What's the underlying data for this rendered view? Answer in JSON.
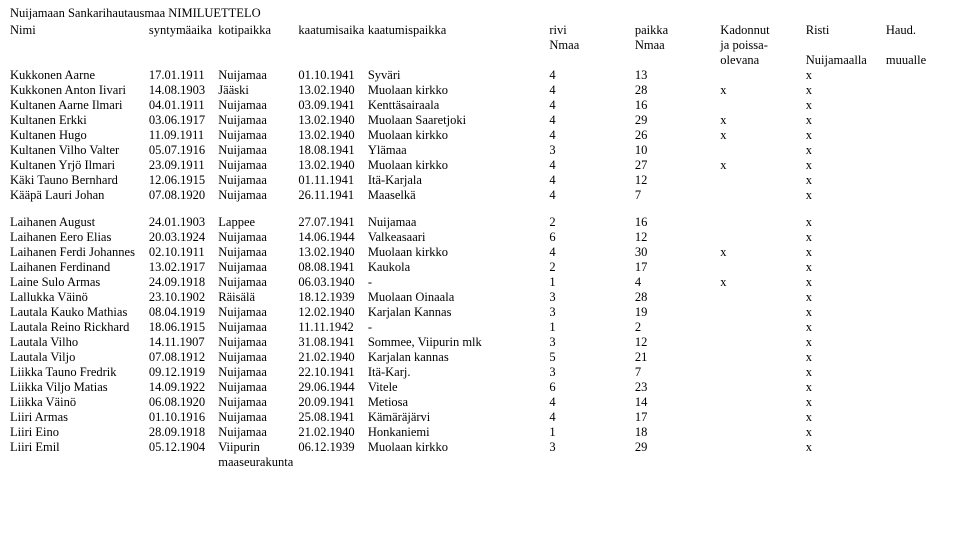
{
  "title": "Nuijamaan Sankarihautausmaa NIMILUETTELO",
  "headers": {
    "name": "Nimi",
    "birth": "syntymäaika",
    "home": "kotipaikka",
    "fdate": "kaatumisaika",
    "fplace": "kaatumispaikka",
    "row": [
      "rivi",
      "Nmaa"
    ],
    "place": [
      "paikka",
      "Nmaa"
    ],
    "mia": [
      "Kadonnut",
      "ja poissa-",
      "olevana"
    ],
    "cross": [
      "Risti",
      "",
      "Nuijamaalla"
    ],
    "bur": [
      "Haud.",
      "",
      "muualle"
    ]
  },
  "groups": [
    [
      {
        "name": "Kukkonen Aarne",
        "birth": "17.01.1911",
        "home": "Nuijamaa",
        "fdate": "01.10.1941",
        "fplace": "Syväri",
        "row": "4",
        "place": "13",
        "mia": "",
        "cross": "x",
        "bur": ""
      },
      {
        "name": "Kukkonen Anton Iivari",
        "birth": "14.08.1903",
        "home": "Jääski",
        "fdate": "13.02.1940",
        "fplace": "Muolaan kirkko",
        "row": "4",
        "place": "28",
        "mia": "x",
        "cross": "x",
        "bur": ""
      },
      {
        "name": "Kultanen Aarne Ilmari",
        "birth": "04.01.1911",
        "home": "Nuijamaa",
        "fdate": "03.09.1941",
        "fplace": "Kenttäsairaala",
        "row": "4",
        "place": "16",
        "mia": "",
        "cross": "x",
        "bur": ""
      },
      {
        "name": "Kultanen Erkki",
        "birth": "03.06.1917",
        "home": "Nuijamaa",
        "fdate": "13.02.1940",
        "fplace": "Muolaan Saaretjoki",
        "row": "4",
        "place": "29",
        "mia": "x",
        "cross": "x",
        "bur": ""
      },
      {
        "name": "Kultanen Hugo",
        "birth": "11.09.1911",
        "home": "Nuijamaa",
        "fdate": "13.02.1940",
        "fplace": "Muolaan kirkko",
        "row": "4",
        "place": "26",
        "mia": "x",
        "cross": "x",
        "bur": ""
      },
      {
        "name": "Kultanen Vilho Valter",
        "birth": "05.07.1916",
        "home": "Nuijamaa",
        "fdate": "18.08.1941",
        "fplace": "Ylämaa",
        "row": "3",
        "place": "10",
        "mia": "",
        "cross": "x",
        "bur": ""
      },
      {
        "name": "Kultanen Yrjö Ilmari",
        "birth": "23.09.1911",
        "home": "Nuijamaa",
        "fdate": "13.02.1940",
        "fplace": "Muolaan kirkko",
        "row": "4",
        "place": "27",
        "mia": "x",
        "cross": "x",
        "bur": ""
      },
      {
        "name": "Käki Tauno Bernhard",
        "birth": "12.06.1915",
        "home": "Nuijamaa",
        "fdate": "01.11.1941",
        "fplace": "Itä-Karjala",
        "row": "4",
        "place": "12",
        "mia": "",
        "cross": "x",
        "bur": ""
      },
      {
        "name": "Kääpä Lauri Johan",
        "birth": "07.08.1920",
        "home": "Nuijamaa",
        "fdate": "26.11.1941",
        "fplace": "Maaselkä",
        "row": "4",
        "place": "7",
        "mia": "",
        "cross": "x",
        "bur": ""
      }
    ],
    [
      {
        "name": "Laihanen August",
        "birth": "24.01.1903",
        "home": "Lappee",
        "fdate": "27.07.1941",
        "fplace": "Nuijamaa",
        "row": "2",
        "place": "16",
        "mia": "",
        "cross": "x",
        "bur": ""
      },
      {
        "name": "Laihanen Eero Elias",
        "birth": "20.03.1924",
        "home": "Nuijamaa",
        "fdate": "14.06.1944",
        "fplace": "Valkeasaari",
        "row": "6",
        "place": "12",
        "mia": "",
        "cross": "x",
        "bur": ""
      },
      {
        "name": "Laihanen Ferdi Johannes",
        "birth": "02.10.1911",
        "home": "Nuijamaa",
        "fdate": "13.02.1940",
        "fplace": "Muolaan kirkko",
        "row": "4",
        "place": "30",
        "mia": "x",
        "cross": "x",
        "bur": ""
      },
      {
        "name": "Laihanen Ferdinand",
        "birth": "13.02.1917",
        "home": "Nuijamaa",
        "fdate": "08.08.1941",
        "fplace": "Kaukola",
        "row": "2",
        "place": "17",
        "mia": "",
        "cross": "x",
        "bur": ""
      },
      {
        "name": "Laine Sulo Armas",
        "birth": "24.09.1918",
        "home": "Nuijamaa",
        "fdate": "06.03.1940",
        "fplace": "-",
        "row": "1",
        "place": "4",
        "mia": "x",
        "cross": "x",
        "bur": ""
      },
      {
        "name": "Lallukka Väinö",
        "birth": "23.10.1902",
        "home": "Räisälä",
        "fdate": "18.12.1939",
        "fplace": "Muolaan Oinaala",
        "row": "3",
        "place": "28",
        "mia": "",
        "cross": "x",
        "bur": ""
      },
      {
        "name": "Lautala Kauko Mathias",
        "birth": "08.04.1919",
        "home": "Nuijamaa",
        "fdate": "12.02.1940",
        "fplace": "Karjalan Kannas",
        "row": "3",
        "place": "19",
        "mia": "",
        "cross": "x",
        "bur": ""
      },
      {
        "name": "Lautala Reino Rickhard",
        "birth": "18.06.1915",
        "home": "Nuijamaa",
        "fdate": "11.11.1942",
        "fplace": "-",
        "row": "1",
        "place": "2",
        "mia": "",
        "cross": "x",
        "bur": ""
      },
      {
        "name": "Lautala Vilho",
        "birth": "14.11.1907",
        "home": "Nuijamaa",
        "fdate": "31.08.1941",
        "fplace": "Sommee, Viipurin mlk",
        "row": "3",
        "place": "12",
        "mia": "",
        "cross": "x",
        "bur": ""
      },
      {
        "name": "Lautala Viljo",
        "birth": "07.08.1912",
        "home": "Nuijamaa",
        "fdate": "21.02.1940",
        "fplace": "Karjalan kannas",
        "row": "5",
        "place": "21",
        "mia": "",
        "cross": "x",
        "bur": ""
      },
      {
        "name": "Liikka Tauno Fredrik",
        "birth": "09.12.1919",
        "home": "Nuijamaa",
        "fdate": "22.10.1941",
        "fplace": "Itä-Karj.",
        "row": "3",
        "place": "7",
        "mia": "",
        "cross": "x",
        "bur": ""
      },
      {
        "name": "Liikka Viljo   Matias",
        "birth": "14.09.1922",
        "home": "Nuijamaa",
        "fdate": "29.06.1944",
        "fplace": "Vitele",
        "row": "6",
        "place": "23",
        "mia": "",
        "cross": "x",
        "bur": ""
      },
      {
        "name": "Liikka Väinö",
        "birth": "06.08.1920",
        "home": "Nuijamaa",
        "fdate": "20.09.1941",
        "fplace": "Metiosa",
        "row": "4",
        "place": "14",
        "mia": "",
        "cross": "x",
        "bur": ""
      },
      {
        "name": "Liiri Armas",
        "birth": "01.10.1916",
        "home": "Nuijamaa",
        "fdate": "25.08.1941",
        "fplace": "Kämäräjärvi",
        "row": "4",
        "place": "17",
        "mia": "",
        "cross": "x",
        "bur": ""
      },
      {
        "name": "Liiri Eino",
        "birth": "28.09.1918",
        "home": "Nuijamaa",
        "fdate": "21.02.1940",
        "fplace": "Honkaniemi",
        "row": "1",
        "place": "18",
        "mia": "",
        "cross": "x",
        "bur": ""
      },
      {
        "name": "Liiri Emil",
        "birth": "05.12.1904",
        "home": "Viipurin",
        "home2": "maaseurakunta",
        "fdate": "06.12.1939",
        "fplace": "Muolaan kirkko",
        "row": "3",
        "place": "29",
        "mia": "",
        "cross": "x",
        "bur": ""
      }
    ]
  ]
}
